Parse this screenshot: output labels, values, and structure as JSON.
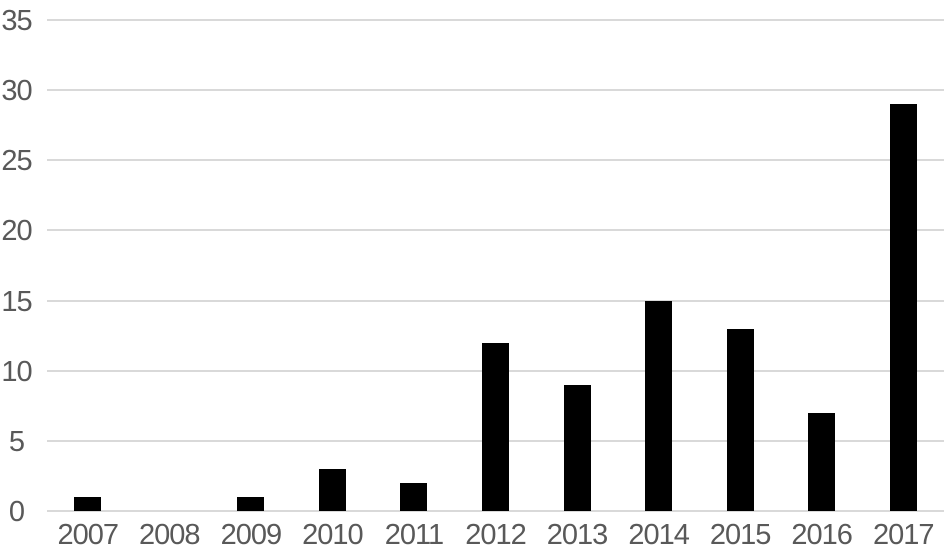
{
  "chart_data": {
    "type": "bar",
    "title": "",
    "xlabel": "",
    "ylabel": "",
    "categories": [
      "2007",
      "2008",
      "2009",
      "2010",
      "2011",
      "2012",
      "2013",
      "2014",
      "2015",
      "2016",
      "2017"
    ],
    "values": [
      1,
      0,
      1,
      3,
      2,
      12,
      9,
      15,
      13,
      7,
      29
    ],
    "ylim": [
      0,
      35
    ],
    "yticks": [
      0,
      5,
      10,
      15,
      20,
      25,
      30,
      35
    ],
    "grid": true,
    "legend": false,
    "colors": {
      "bar": "#000000",
      "gridline": "#d9d9d9",
      "tick_label": "#595959",
      "background": "#ffffff"
    }
  }
}
